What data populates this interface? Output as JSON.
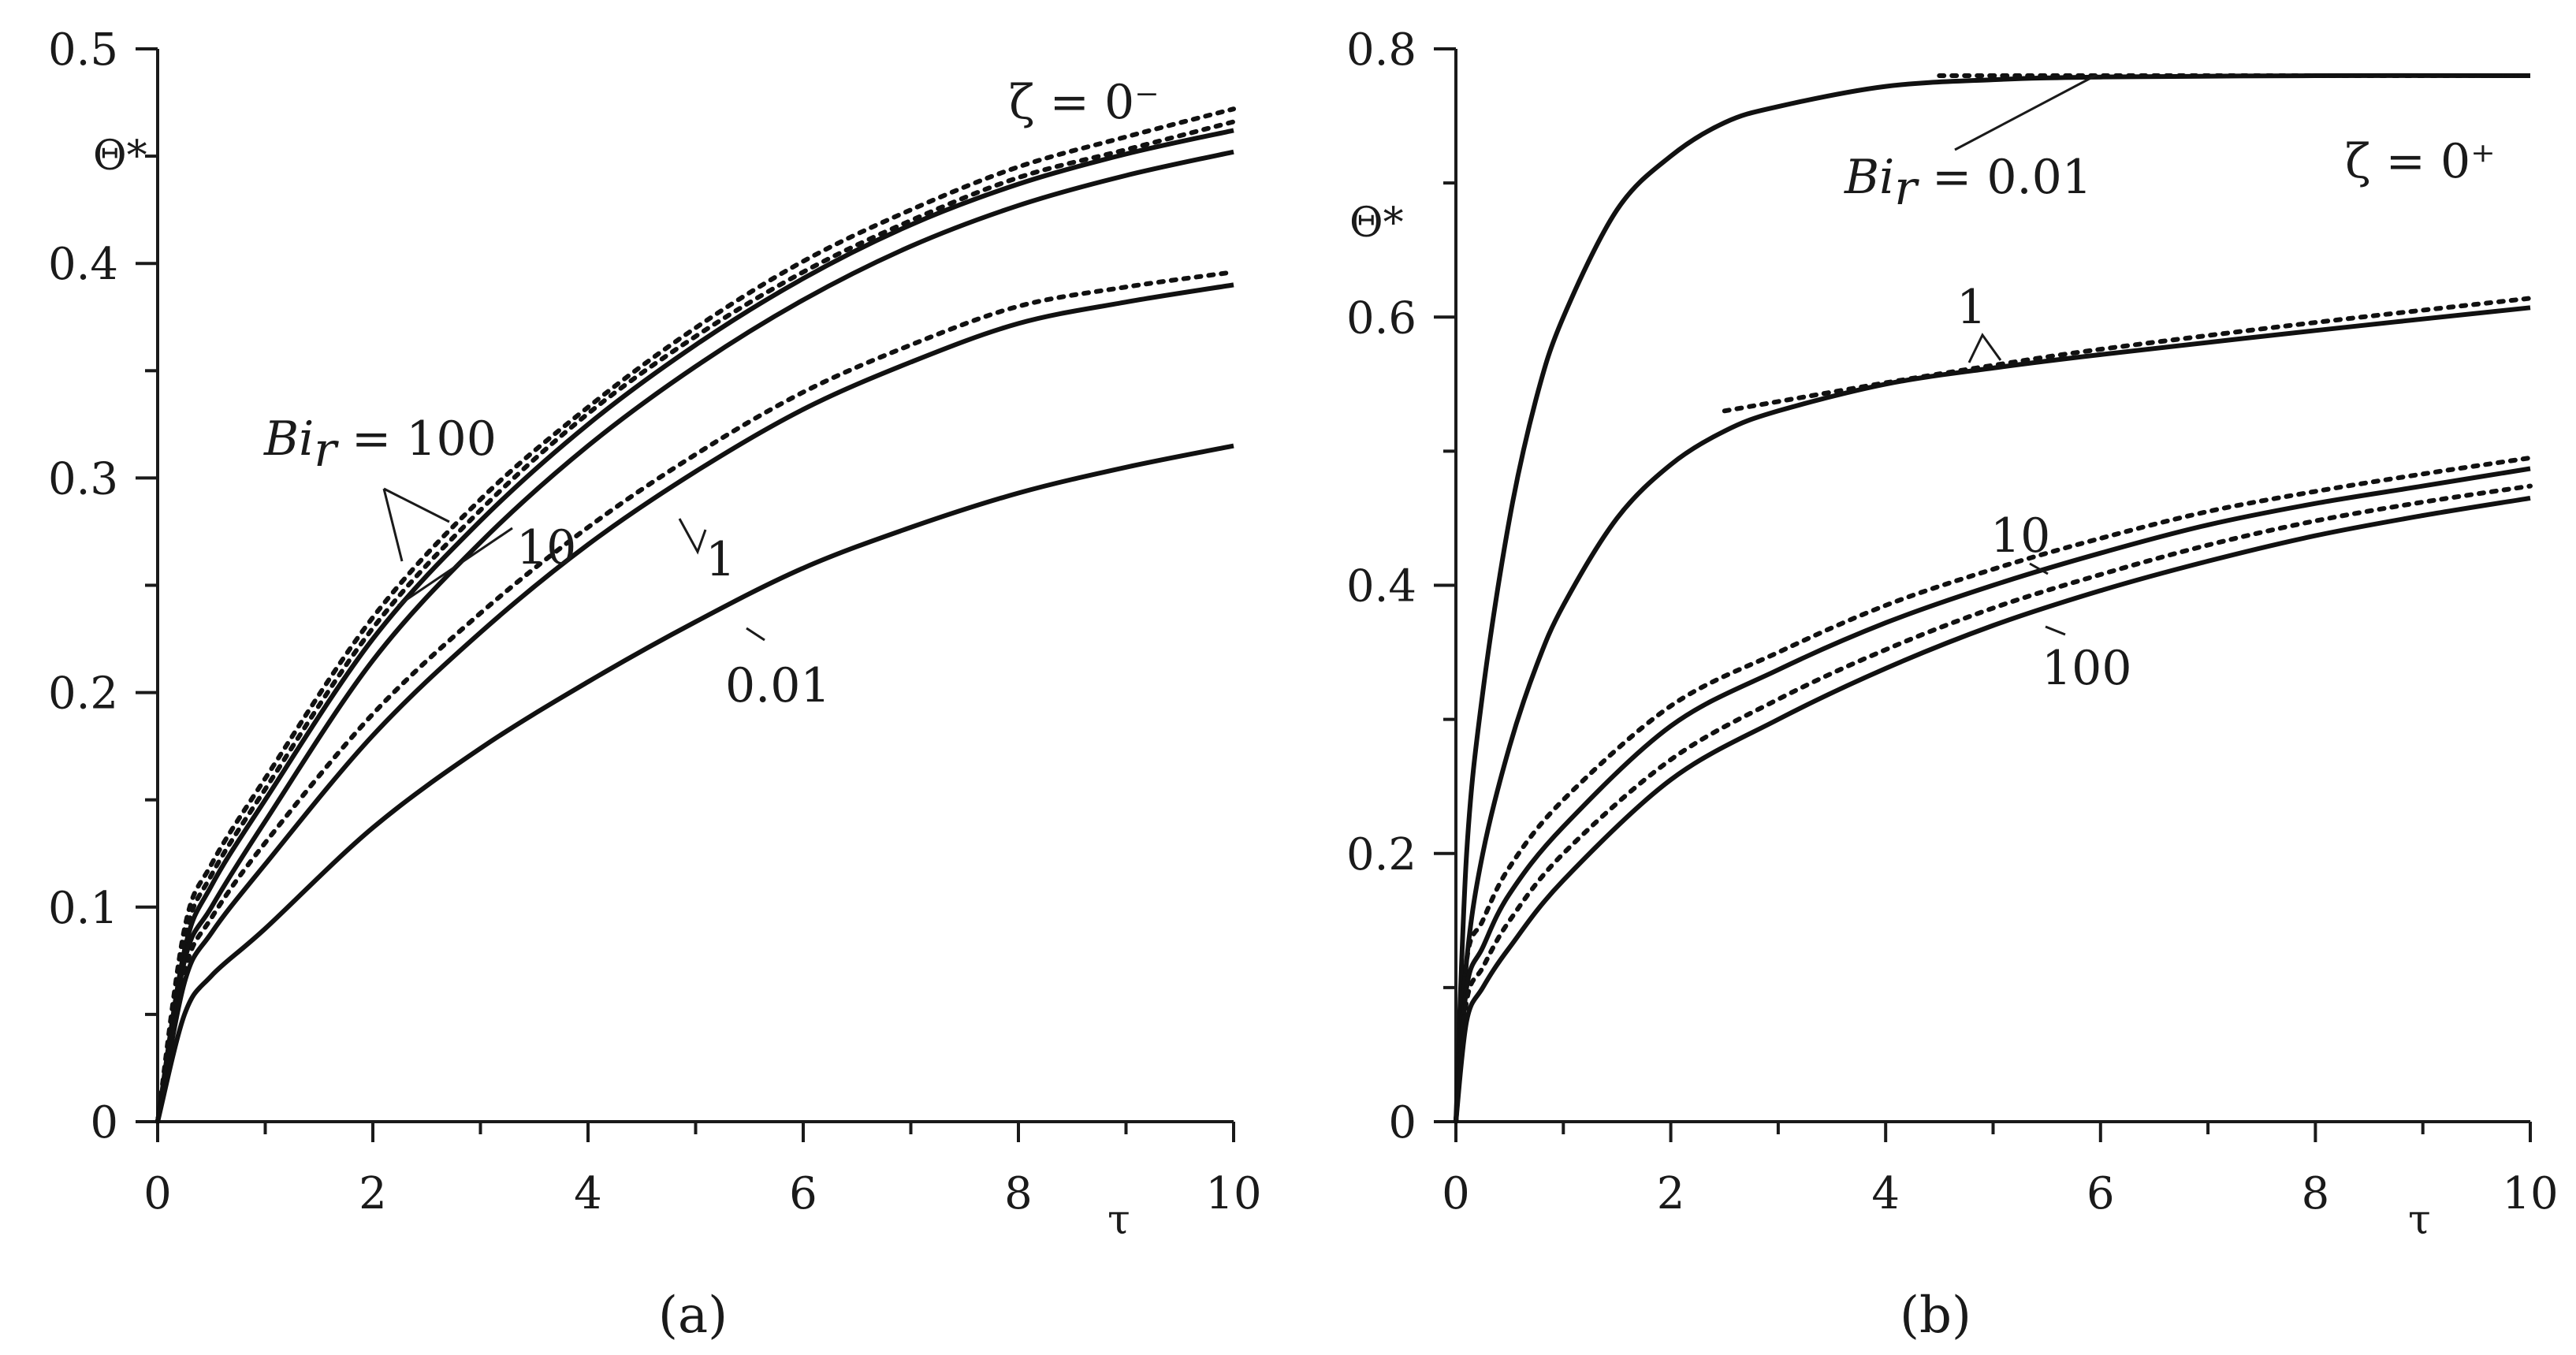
{
  "chart_data": [
    {
      "type": "line",
      "panel_label": "(a)",
      "xlabel": "τ",
      "ylabel": "Θ*",
      "xlim": [
        0,
        10
      ],
      "ylim": [
        0,
        0.5
      ],
      "xticks": [
        0,
        2,
        4,
        6,
        8,
        10
      ],
      "yticks": [
        0,
        0.1,
        0.2,
        0.3,
        0.4,
        0.5
      ],
      "xtick_labels": [
        "0",
        "2",
        "4",
        "6",
        "8",
        "10"
      ],
      "ytick_labels": [
        "0",
        "0.1",
        "0.2",
        "0.3",
        "0.4",
        "0.5"
      ],
      "zeta_label": "ζ = 0⁻",
      "grid": false,
      "annotations": [
        {
          "text_italic": "Bi",
          "sub": "r",
          "text": " = 100"
        },
        {
          "text": "10"
        },
        {
          "text": "1"
        },
        {
          "text": "0.01"
        }
      ],
      "series": [
        {
          "style": "dotted",
          "x": [
            0,
            0.25,
            0.5,
            1,
            2,
            3,
            4,
            5,
            6,
            7,
            8,
            9,
            10
          ],
          "y": [
            0,
            0.09,
            0.12,
            0.16,
            0.235,
            0.29,
            0.333,
            0.37,
            0.401,
            0.425,
            0.445,
            0.459,
            0.472
          ]
        },
        {
          "style": "solid",
          "x": [
            0,
            0.25,
            0.5,
            1,
            2,
            3,
            4,
            5,
            6,
            7,
            8,
            9,
            10
          ],
          "y": [
            0,
            0.08,
            0.11,
            0.15,
            0.225,
            0.28,
            0.325,
            0.362,
            0.393,
            0.418,
            0.437,
            0.451,
            0.462
          ]
        },
        {
          "style": "dotted",
          "x": [
            0,
            0.25,
            0.5,
            1,
            2,
            3,
            4,
            5,
            6,
            7,
            8,
            9,
            10
          ],
          "y": [
            0,
            0.085,
            0.115,
            0.155,
            0.23,
            0.285,
            0.33,
            0.366,
            0.396,
            0.42,
            0.44,
            0.453,
            0.466
          ]
        },
        {
          "style": "solid",
          "x": [
            0,
            0.25,
            0.5,
            1,
            2,
            3,
            4,
            5,
            6,
            7,
            8,
            9,
            10
          ],
          "y": [
            0,
            0.075,
            0.1,
            0.14,
            0.215,
            0.27,
            0.315,
            0.352,
            0.383,
            0.408,
            0.427,
            0.441,
            0.452
          ]
        },
        {
          "style": "dotted",
          "x": [
            0,
            0.25,
            0.5,
            1,
            2,
            3,
            4,
            5,
            6,
            7,
            8,
            9,
            10
          ],
          "y": [
            0,
            0.07,
            0.095,
            0.13,
            0.19,
            0.237,
            0.277,
            0.311,
            0.34,
            0.362,
            0.38,
            0.389,
            0.396
          ]
        },
        {
          "style": "solid",
          "x": [
            0,
            0.25,
            0.5,
            1,
            2,
            3,
            4,
            5,
            6,
            7,
            8,
            9,
            10
          ],
          "y": [
            0,
            0.065,
            0.088,
            0.12,
            0.18,
            0.228,
            0.269,
            0.303,
            0.332,
            0.354,
            0.372,
            0.382,
            0.39
          ]
        },
        {
          "style": "solid",
          "x": [
            0,
            0.25,
            0.5,
            1,
            2,
            3,
            4,
            5,
            6,
            7,
            8,
            9,
            10
          ],
          "y": [
            0,
            0.05,
            0.068,
            0.09,
            0.137,
            0.174,
            0.205,
            0.233,
            0.258,
            0.277,
            0.293,
            0.305,
            0.315
          ]
        }
      ]
    },
    {
      "type": "line",
      "panel_label": "(b)",
      "xlabel": "τ",
      "ylabel": "Θ*",
      "xlim": [
        0,
        10
      ],
      "ylim": [
        0,
        0.8
      ],
      "xticks": [
        0,
        2,
        4,
        6,
        8,
        10
      ],
      "yticks": [
        0,
        0.2,
        0.4,
        0.6,
        0.8
      ],
      "xtick_labels": [
        "0",
        "2",
        "4",
        "6",
        "8",
        "10"
      ],
      "ytick_labels": [
        "0",
        "0.2",
        "0.4",
        "0.6",
        "0.8"
      ],
      "zeta_label": "ζ = 0⁺",
      "grid": false,
      "annotations": [
        {
          "text_italic": "Bi",
          "sub": "r",
          "text": " = 0.01"
        },
        {
          "text": "1"
        },
        {
          "text": "10"
        },
        {
          "text": "100"
        }
      ],
      "series": [
        {
          "style": "solid",
          "x": [
            0,
            0.1,
            0.25,
            0.5,
            0.75,
            1,
            1.5,
            2,
            2.5,
            3,
            4,
            5,
            6,
            8,
            10
          ],
          "y": [
            0,
            0.2,
            0.32,
            0.45,
            0.54,
            0.6,
            0.68,
            0.72,
            0.745,
            0.757,
            0.772,
            0.777,
            0.779,
            0.78,
            0.78
          ]
        },
        {
          "style": "dotted",
          "x": [
            4.5,
            5,
            6,
            8,
            10
          ],
          "y": [
            0.78,
            0.78,
            0.78,
            0.78,
            0.78
          ]
        },
        {
          "style": "solid",
          "x": [
            0,
            0.1,
            0.25,
            0.5,
            0.75,
            1,
            1.5,
            2,
            2.5,
            3,
            4,
            5,
            6,
            8,
            10
          ],
          "y": [
            0,
            0.12,
            0.2,
            0.28,
            0.34,
            0.385,
            0.45,
            0.49,
            0.515,
            0.53,
            0.55,
            0.562,
            0.572,
            0.59,
            0.607
          ]
        },
        {
          "style": "dotted",
          "x": [
            2.5,
            3,
            4,
            5,
            6,
            8,
            10
          ],
          "y": [
            0.53,
            0.537,
            0.551,
            0.564,
            0.576,
            0.596,
            0.614
          ]
        },
        {
          "style": "dotted",
          "x": [
            0,
            0.1,
            0.25,
            0.5,
            1,
            2,
            3,
            4,
            5,
            6,
            7,
            8,
            9,
            10
          ],
          "y": [
            0,
            0.12,
            0.15,
            0.19,
            0.24,
            0.31,
            0.35,
            0.385,
            0.412,
            0.435,
            0.455,
            0.47,
            0.483,
            0.495
          ]
        },
        {
          "style": "solid",
          "x": [
            0,
            0.1,
            0.25,
            0.5,
            1,
            2,
            3,
            4,
            5,
            6,
            7,
            8,
            9,
            10
          ],
          "y": [
            0,
            0.1,
            0.13,
            0.17,
            0.22,
            0.295,
            0.337,
            0.372,
            0.4,
            0.424,
            0.445,
            0.461,
            0.474,
            0.487
          ]
        },
        {
          "style": "dotted",
          "x": [
            0,
            0.1,
            0.25,
            0.5,
            1,
            2,
            3,
            4,
            5,
            6,
            7,
            8,
            9,
            10
          ],
          "y": [
            0,
            0.09,
            0.115,
            0.15,
            0.2,
            0.27,
            0.315,
            0.352,
            0.383,
            0.408,
            0.43,
            0.448,
            0.462,
            0.474
          ]
        },
        {
          "style": "solid",
          "x": [
            0,
            0.1,
            0.25,
            0.5,
            1,
            2,
            3,
            4,
            5,
            6,
            7,
            8,
            9,
            10
          ],
          "y": [
            0,
            0.075,
            0.1,
            0.13,
            0.18,
            0.255,
            0.3,
            0.338,
            0.37,
            0.396,
            0.418,
            0.437,
            0.452,
            0.465
          ]
        }
      ]
    }
  ]
}
